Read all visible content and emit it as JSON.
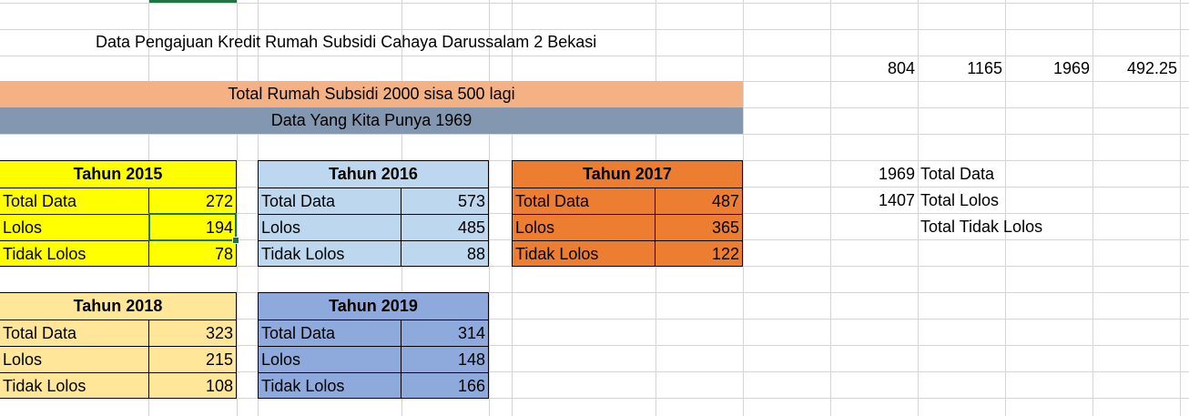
{
  "title": "Data Pengajuan Kredit Rumah Subsidi Cahaya Darussalam 2 Bekasi",
  "summary_row": [
    "804",
    "1165",
    "1969",
    "492.25"
  ],
  "bands": [
    {
      "text": "Total Rumah Subsidi 2000 sisa 500 lagi",
      "color": "#F4B183"
    },
    {
      "text": "Data Yang Kita Punya 1969",
      "color": "#8497B0"
    }
  ],
  "tables": [
    {
      "year": "Tahun 2015",
      "color": "#FFFF00",
      "rows": [
        [
          "Total Data",
          "272"
        ],
        [
          "Lolos",
          "194"
        ],
        [
          "Tidak Lolos",
          "78"
        ]
      ]
    },
    {
      "year": "Tahun 2016",
      "color": "#BDD7EE",
      "rows": [
        [
          "Total Data",
          "573"
        ],
        [
          "Lolos",
          "485"
        ],
        [
          "Tidak Lolos",
          "88"
        ]
      ]
    },
    {
      "year": "Tahun 2017",
      "color": "#ED7D31",
      "rows": [
        [
          "Total Data",
          "487"
        ],
        [
          "Lolos",
          "365"
        ],
        [
          "Tidak Lolos",
          "122"
        ]
      ]
    },
    {
      "year": "Tahun 2018",
      "color": "#FFE699",
      "rows": [
        [
          "Total Data",
          "323"
        ],
        [
          "Lolos",
          "215"
        ],
        [
          "Tidak Lolos",
          "108"
        ]
      ]
    },
    {
      "year": "Tahun 2019",
      "color": "#8EA9DB",
      "rows": [
        [
          "Total Data",
          "314"
        ],
        [
          "Lolos",
          "148"
        ],
        [
          "Tidak Lolos",
          "166"
        ]
      ]
    }
  ],
  "totals": [
    {
      "value": "1969",
      "label": "Total Data"
    },
    {
      "value": "1407",
      "label": "Total Lolos"
    },
    {
      "value": "",
      "label": "Total Tidak Lolos"
    }
  ],
  "colors": {
    "gridline": "#D4D4D4",
    "selection": "#217346"
  }
}
